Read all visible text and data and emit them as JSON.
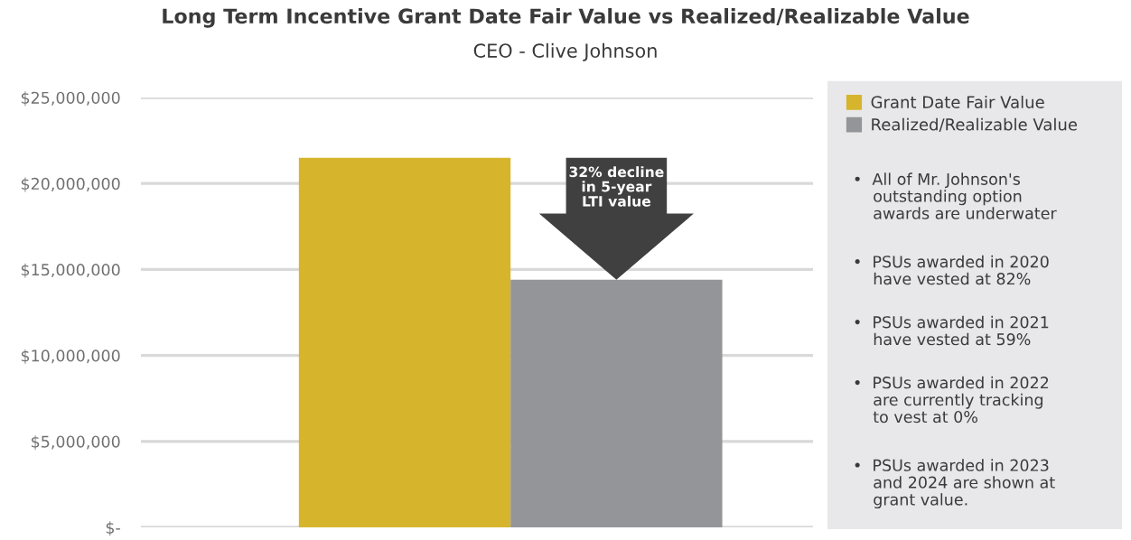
{
  "chart_data": {
    "type": "bar",
    "title": "Long Term Incentive Grant Date Fair Value vs Realized/Realizable Value",
    "subtitle": "CEO - Clive Johnson",
    "categories": [
      null
    ],
    "series": [
      {
        "name": "Grant Date Fair Value",
        "color": "#d6b52d",
        "values": [
          21500000
        ]
      },
      {
        "name": "Realized/Realizable Value",
        "color": "#949598",
        "values": [
          14400000
        ]
      }
    ],
    "ylim": [
      0,
      25000000
    ],
    "yticks": [
      {
        "value": 0,
        "label": "$-"
      },
      {
        "value": 5000000,
        "label": "$5,000,000"
      },
      {
        "value": 10000000,
        "label": "$10,000,000"
      },
      {
        "value": 15000000,
        "label": "$15,000,000"
      },
      {
        "value": 20000000,
        "label": "$20,000,000"
      },
      {
        "value": 25000000,
        "label": "$25,000,000"
      }
    ],
    "grid": "y",
    "legend": "right",
    "annotations": [
      "32% decline\nin 5-year\nLTI value",
      "•  All of Mr. Johnson's\n    outstanding option\n    awards are underwater",
      "•  PSUs awarded in 2020\n    have vested at 82%",
      "•  PSUs awarded in 2021\n    have vested at 59%",
      "•  PSUs awarded in 2022\n    are currently tracking\n    to vest at 0%",
      "•  PSUs awarded in 2023\n    and 2024 are shown at\n    grant value."
    ]
  }
}
